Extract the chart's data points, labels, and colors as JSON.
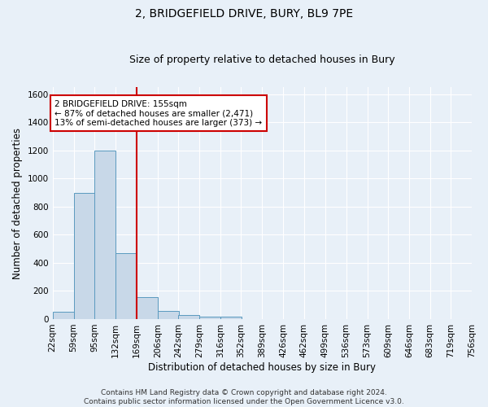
{
  "title": "2, BRIDGEFIELD DRIVE, BURY, BL9 7PE",
  "subtitle": "Size of property relative to detached houses in Bury",
  "xlabel": "Distribution of detached houses by size in Bury",
  "ylabel": "Number of detached properties",
  "bar_values": [
    50,
    900,
    1200,
    470,
    155,
    60,
    30,
    20,
    20,
    0,
    0,
    0,
    0,
    0,
    0,
    0,
    0,
    0,
    0,
    0
  ],
  "bin_labels": [
    "22sqm",
    "59sqm",
    "95sqm",
    "132sqm",
    "169sqm",
    "206sqm",
    "242sqm",
    "279sqm",
    "316sqm",
    "352sqm",
    "389sqm",
    "426sqm",
    "462sqm",
    "499sqm",
    "536sqm",
    "573sqm",
    "609sqm",
    "646sqm",
    "683sqm",
    "719sqm",
    "756sqm"
  ],
  "bin_edges": [
    22,
    59,
    95,
    132,
    169,
    206,
    242,
    279,
    316,
    352,
    389,
    426,
    462,
    499,
    536,
    573,
    609,
    646,
    683,
    719,
    756
  ],
  "bar_color": "#c8d8e8",
  "bar_edge_color": "#5a9abf",
  "red_line_color": "#cc0000",
  "annotation_text": "2 BRIDGEFIELD DRIVE: 155sqm\n← 87% of detached houses are smaller (2,471)\n13% of semi-detached houses are larger (373) →",
  "annotation_box_color": "#ffffff",
  "annotation_box_edge": "#cc0000",
  "ylim": [
    0,
    1650
  ],
  "yticks": [
    0,
    200,
    400,
    600,
    800,
    1000,
    1200,
    1400,
    1600
  ],
  "bg_color": "#e8f0f8",
  "plot_bg_color": "#ffffff",
  "footer_text": "Contains HM Land Registry data © Crown copyright and database right 2024.\nContains public sector information licensed under the Open Government Licence v3.0.",
  "title_fontsize": 10,
  "subtitle_fontsize": 9,
  "axis_label_fontsize": 8.5,
  "tick_fontsize": 7.5,
  "annotation_fontsize": 7.5,
  "footer_fontsize": 6.5
}
